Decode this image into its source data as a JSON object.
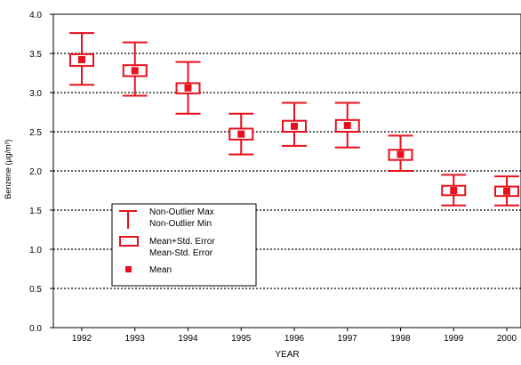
{
  "chart_data": {
    "type": "box",
    "categories": [
      "1992",
      "1993",
      "1994",
      "1995",
      "1996",
      "1997",
      "1998",
      "1999",
      "2000"
    ],
    "mean": [
      3.42,
      3.28,
      3.06,
      2.47,
      2.57,
      2.58,
      2.21,
      1.75,
      1.74
    ],
    "se_upper": [
      3.49,
      3.35,
      3.12,
      2.54,
      2.64,
      2.65,
      2.27,
      1.81,
      1.8
    ],
    "se_lower": [
      3.34,
      3.21,
      2.99,
      2.4,
      2.5,
      2.5,
      2.14,
      1.69,
      1.68
    ],
    "whisker_max": [
      3.76,
      3.64,
      3.39,
      2.73,
      2.87,
      2.87,
      2.45,
      1.95,
      1.93
    ],
    "whisker_min": [
      3.1,
      2.96,
      2.73,
      2.21,
      2.32,
      2.3,
      2.0,
      1.56,
      1.56
    ],
    "xlabel": "YEAR",
    "ylabel": "Benzene (µg/m³)",
    "ylim": [
      0.0,
      4.0
    ],
    "yticks": [
      "0.0",
      "0.5",
      "1.0",
      "1.5",
      "2.0",
      "2.5",
      "3.0",
      "3.5",
      "4.0"
    ],
    "grid": "horizontal dotted",
    "legend": {
      "placement": "lower-left",
      "entries": [
        {
          "symbol": "whisker",
          "line1": "Non-Outlier Max",
          "line2": "Non-Outlier Min"
        },
        {
          "symbol": "box",
          "line1": "Mean+Std. Error",
          "line2": "Mean-Std. Error"
        },
        {
          "symbol": "marker",
          "line1": "Mean",
          "line2": ""
        }
      ]
    },
    "color": "#e8101c"
  }
}
